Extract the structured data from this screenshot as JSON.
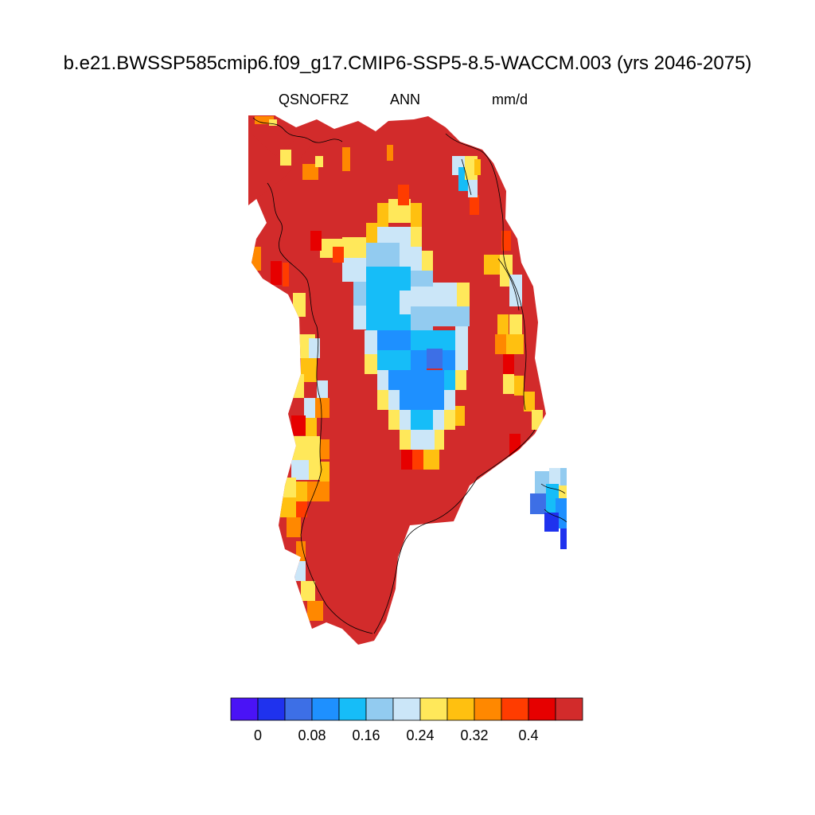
{
  "title": "b.e21.BWSSP585cmip6.f09_g17.CMIP6-SSP5-8.5-WACCM.003 (yrs 2046-2075)",
  "subtitle": {
    "variable": "QSNOFRZ",
    "season": "ANN",
    "units": "mm/d"
  },
  "colorbar": {
    "colors": [
      "#4a13f6",
      "#1f32ee",
      "#3d6fe6",
      "#1e90ff",
      "#16bdf8",
      "#92cbf0",
      "#cbe6f8",
      "#ffe85a",
      "#ffc010",
      "#ff8800",
      "#ff3c00",
      "#e60000",
      "#d22b2b"
    ],
    "tick_labels": [
      "0",
      "0.08",
      "0.16",
      "0.24",
      "0.32",
      "0.4"
    ]
  },
  "map": {
    "region": "Greenland",
    "colors": {
      "land_high": "#d22b2b",
      "interior_low": "#1e90ff",
      "interior_mid": "#16bdf8",
      "interior_light": "#92cbf0",
      "interior_pale": "#cbe6f8",
      "edge_yellow": "#ffe85a",
      "edge_gold": "#ffc010",
      "edge_orange": "#ff8800",
      "edge_red": "#ff3c00",
      "edge_deep": "#e60000",
      "icon_blue": "#3d6fe6",
      "coastline": "#000000"
    }
  }
}
